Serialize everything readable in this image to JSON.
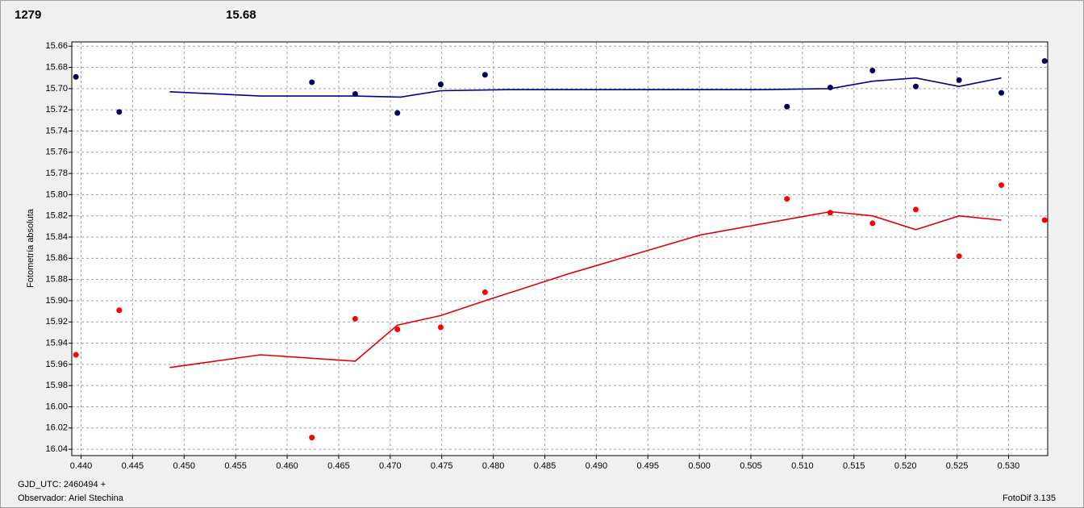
{
  "chart_data": {
    "type": "scatter",
    "label_left": "1279",
    "label_left_color": "#ff0000",
    "label_right": "15.68",
    "label_right_color": "#00008b",
    "y_label": "Fotometría absoluta",
    "footer_left_1": "GJD_UTC: 2460494 +",
    "footer_left_2": "Observador: Ariel Stechina",
    "footer_right": "FotoDif 3.135",
    "invert_y": true,
    "grid": true,
    "xlim": [
      0.4391,
      0.5338
    ],
    "xticks": [
      {
        "value": 0.44,
        "label": "0.440"
      },
      {
        "value": 0.445,
        "label": "0.445"
      },
      {
        "value": 0.45,
        "label": "0.450"
      },
      {
        "value": 0.455,
        "label": "0.455"
      },
      {
        "value": 0.46,
        "label": "0.460"
      },
      {
        "value": 0.465,
        "label": "0.465"
      },
      {
        "value": 0.47,
        "label": "0.470"
      },
      {
        "value": 0.475,
        "label": "0.475"
      },
      {
        "value": 0.48,
        "label": "0.480"
      },
      {
        "value": 0.485,
        "label": "0.485"
      },
      {
        "value": 0.49,
        "label": "0.490"
      },
      {
        "value": 0.495,
        "label": "0.495"
      },
      {
        "value": 0.5,
        "label": "0.500"
      },
      {
        "value": 0.505,
        "label": "0.505"
      },
      {
        "value": 0.51,
        "label": "0.510"
      },
      {
        "value": 0.515,
        "label": "0.515"
      },
      {
        "value": 0.52,
        "label": "0.520"
      },
      {
        "value": 0.525,
        "label": "0.525"
      },
      {
        "value": 0.53,
        "label": "0.530"
      }
    ],
    "ylim": [
      15.656,
      16.046
    ],
    "yticks": [
      15.66,
      15.68,
      {
        "value": 15.7,
        "label": "15.70"
      },
      15.72,
      15.74,
      15.76,
      15.78,
      {
        "value": 15.8,
        "label": "15.80"
      },
      15.82,
      15.84,
      15.86,
      15.88,
      {
        "value": 15.9,
        "label": "15.90"
      },
      15.92,
      15.94,
      15.96,
      15.98,
      {
        "value": 16.0,
        "label": "16.00"
      },
      16.02,
      16.04
    ],
    "series": [
      {
        "mode": "markers",
        "color": "#00005a",
        "x": [
          0.4395,
          0.4437,
          0.4624,
          0.4666,
          0.4707,
          0.4749,
          0.4792,
          0.5085,
          0.5127,
          0.5168,
          0.521,
          0.5252,
          0.5293,
          0.5335
        ],
        "values": [
          15.689,
          15.722,
          15.694,
          15.705,
          15.723,
          15.696,
          15.687,
          15.717,
          15.699,
          15.683,
          15.698,
          15.692,
          15.704,
          15.674
        ]
      },
      {
        "mode": "line",
        "color": "#00008b",
        "x": [
          0.4486,
          0.4574,
          0.4666,
          0.471,
          0.4749,
          0.4813,
          0.5063,
          0.5127,
          0.5168,
          0.521,
          0.5252,
          0.5293
        ],
        "values": [
          15.703,
          15.707,
          15.707,
          15.708,
          15.702,
          15.701,
          15.701,
          15.7,
          15.693,
          15.69,
          15.698,
          15.69
        ]
      },
      {
        "mode": "markers",
        "color": "#ff0000",
        "x": [
          0.4395,
          0.4437,
          0.4624,
          0.4666,
          0.4707,
          0.4749,
          0.4792,
          0.5085,
          0.5127,
          0.5168,
          0.521,
          0.5252,
          0.5293,
          0.5335
        ],
        "values": [
          15.951,
          15.909,
          16.029,
          15.917,
          15.927,
          15.925,
          15.892,
          15.804,
          15.817,
          15.827,
          15.814,
          15.858,
          15.791,
          15.824
        ]
      },
      {
        "mode": "line",
        "color": "#e00000",
        "x": [
          0.4486,
          0.4574,
          0.4666,
          0.4707,
          0.4749,
          0.4792,
          0.4875,
          0.5001,
          0.5127,
          0.5168,
          0.521,
          0.5252,
          0.5293
        ],
        "values": [
          15.963,
          15.951,
          15.957,
          15.923,
          15.914,
          15.9,
          15.874,
          15.838,
          15.816,
          15.82,
          15.833,
          15.82,
          15.824
        ]
      }
    ]
  }
}
